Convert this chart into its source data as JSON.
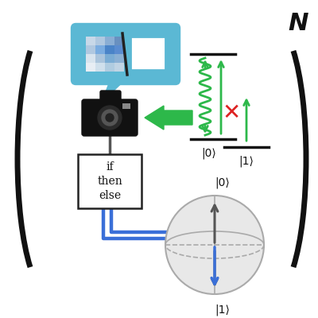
{
  "bg_color": "#ffffff",
  "N_label": "N",
  "bracket_color": "#111111",
  "bracket_linewidth": 4.5,
  "arrow_green": "#2db84a",
  "arrow_blue": "#3a6fd8",
  "arrow_red": "#dd2222",
  "energy_line_color": "#111111",
  "sphere_facecolor": "#e8e8e8",
  "sphere_edgecolor": "#aaaaaa",
  "if_box_text": "if\nthen\nelse",
  "label_0": "|0⟩",
  "label_1": "|1⟩",
  "bubble_color": "#5bb8d4",
  "cam_color": "#111111",
  "wire_gray": "#555555"
}
